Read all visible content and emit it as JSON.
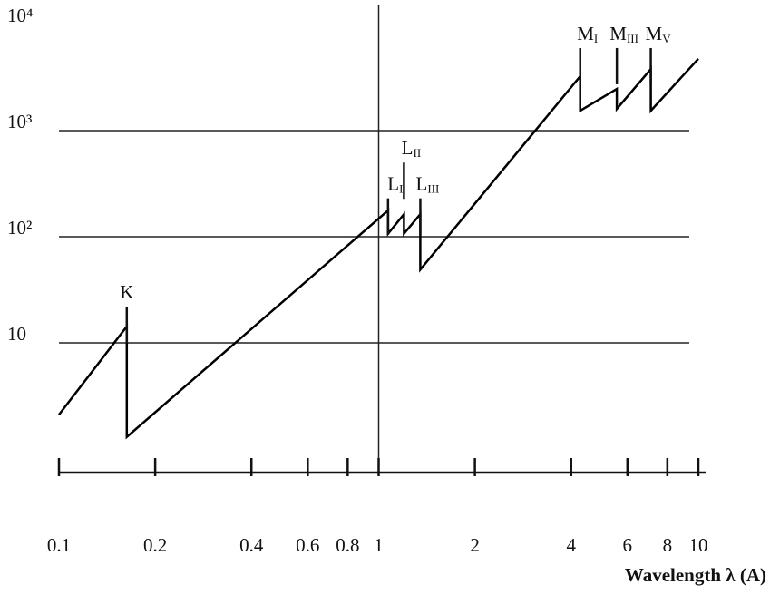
{
  "chart_data": {
    "type": "line",
    "x_label": "Wavelength λ (A)",
    "log_x": true,
    "log_y": true,
    "xlim": [
      0.1,
      10
    ],
    "ylim": [
      0.6,
      10000
    ],
    "xticks": [
      0.1,
      0.2,
      0.4,
      0.6,
      0.8,
      1,
      2,
      4,
      6,
      8,
      10
    ],
    "yticks": [
      10,
      {
        "value": 100,
        "label": "10²"
      },
      {
        "value": 1000,
        "label": "10³"
      },
      {
        "value": 10000,
        "label": "10⁴"
      }
    ],
    "xgrid": [
      1
    ],
    "grid": true,
    "series": [
      {
        "color": "#000000",
        "x": [
          0.1,
          0.163,
          0.163,
          1.07,
          1.07,
          1.2,
          1.2,
          1.35,
          1.35,
          4.27,
          4.27,
          5.56,
          5.56,
          7.1,
          7.1,
          10
        ],
        "values": [
          2.1,
          14.3,
          1.3,
          177,
          107,
          163,
          107,
          163,
          49,
          3250,
          1540,
          2470,
          1600,
          3800,
          1540,
          4750
        ]
      }
    ],
    "annotations": [
      {
        "label": "K",
        "x": 0.163,
        "y": 22
      },
      {
        "label": "L",
        "sub": "I",
        "x": 1.07,
        "y": 230
      },
      {
        "label": "L",
        "sub": "II",
        "x": 1.2,
        "y": 500
      },
      {
        "label": "L",
        "sub": "III",
        "x": 1.35,
        "y": 230
      },
      {
        "label": "M",
        "sub": "I",
        "x": 4.27,
        "y": 6000
      },
      {
        "label": "M",
        "sub": "III",
        "x": 5.56,
        "y": 6000
      },
      {
        "label": "M",
        "sub": "V",
        "x": 7.1,
        "y": 6000
      }
    ]
  }
}
